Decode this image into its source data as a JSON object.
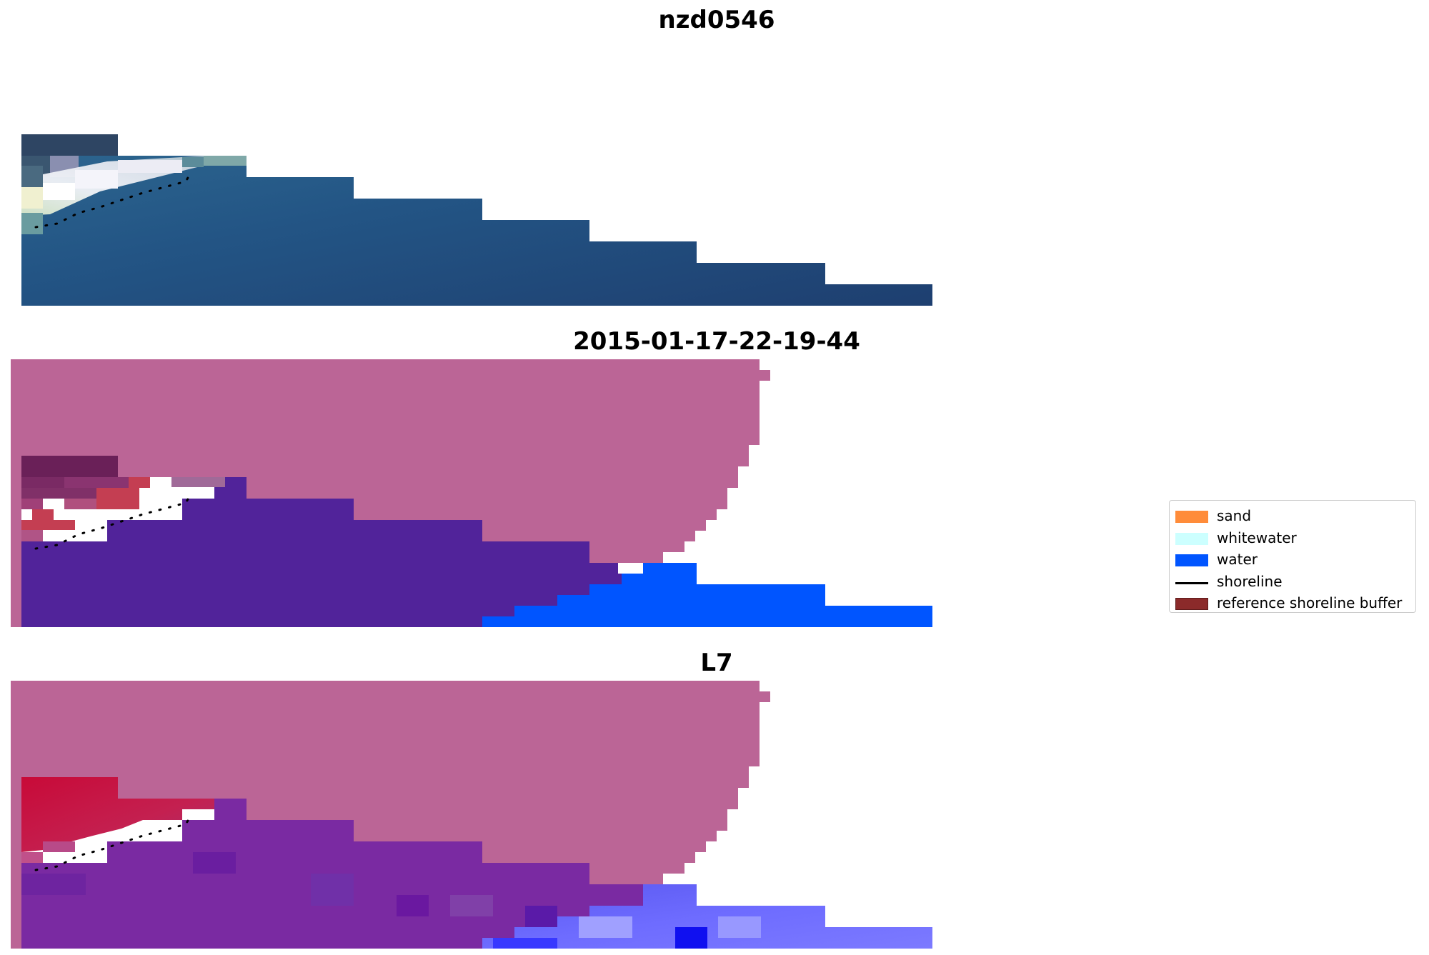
{
  "titles": {
    "top": "nzd0546",
    "middle": "2015-01-17-22-19-44",
    "bottom": "L7"
  },
  "colors": {
    "sand": "#ff8c3a",
    "whitewater": "#ccffff",
    "water": "#0055ff",
    "shoreline": "#000000",
    "reference_shoreline_buffer": "#8b2a2a",
    "mask_pink": "#bb6596",
    "classified_water_purple": "#51239a",
    "rgb_water_blue": "#215080",
    "nir_red": "#c01040",
    "nir_water_purple": "#7a2aa2"
  },
  "legend": {
    "items": [
      {
        "label": "sand",
        "kind": "patch",
        "color": "#ff8c3a"
      },
      {
        "label": "whitewater",
        "kind": "patch",
        "color": "#ccffff"
      },
      {
        "label": "water",
        "kind": "patch",
        "color": "#0055ff"
      },
      {
        "label": "shoreline",
        "kind": "line",
        "color": "#000000"
      },
      {
        "label": "reference shoreline buffer",
        "kind": "patch",
        "color": "#8b2a2a"
      }
    ]
  },
  "icons": {
    "shoreline": "dotted-shoreline-line"
  }
}
